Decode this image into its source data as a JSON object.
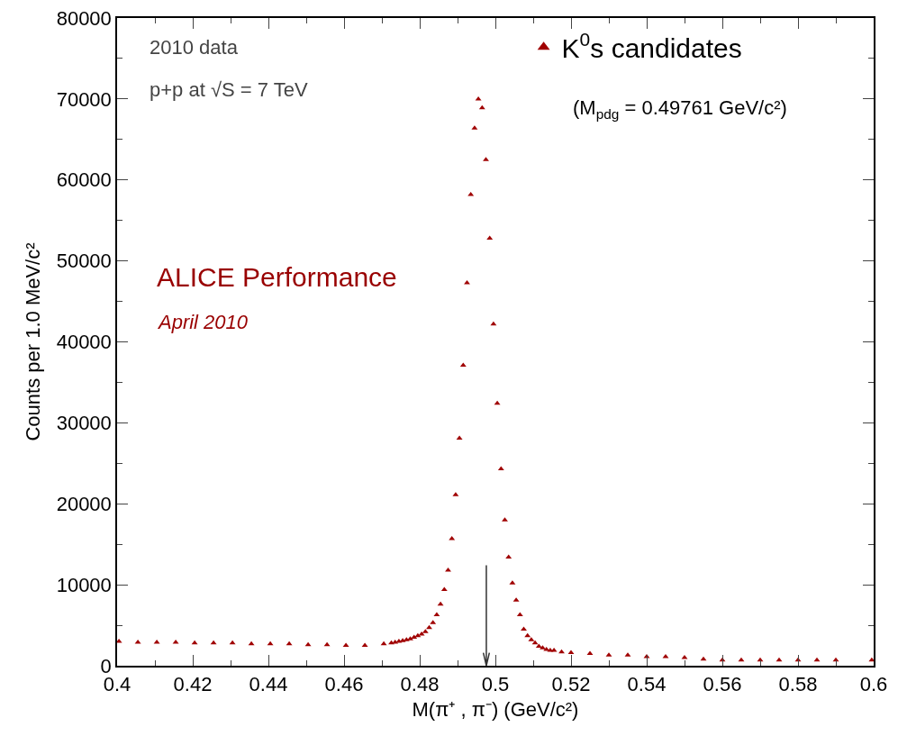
{
  "chart_data": {
    "type": "scatter",
    "xlabel": "M(π⁺ , π⁻) (GeV/c²)",
    "ylabel": "Counts per 1.0 MeV/c²",
    "annotations": [
      "2010 data",
      "p+p at √S = 7 TeV",
      "ALICE Performance",
      "April 2010",
      "(M$_{pdg}$ = 0.49761 GeV/c²)"
    ],
    "xlim": [
      0.4,
      0.6
    ],
    "xticks": [
      0.4,
      0.42,
      0.44,
      0.46,
      0.48,
      0.5,
      0.52,
      0.54,
      0.56,
      0.58,
      0.6
    ],
    "ylim": [
      0,
      80000
    ],
    "yticks": [
      0,
      10000,
      20000,
      30000,
      40000,
      50000,
      60000,
      70000,
      80000
    ],
    "grid": false,
    "legend": "top right",
    "marker": "triangle",
    "ref_lines": [
      {
        "axis": "x",
        "value": 0.49761,
        "color": "#333333"
      }
    ],
    "series": [
      {
        "name": "K$^{0}$s candidates",
        "color": "#a00000",
        "x": [
          0.4005,
          0.4055,
          0.4105,
          0.4155,
          0.4205,
          0.4255,
          0.4305,
          0.4355,
          0.4405,
          0.4455,
          0.4505,
          0.4555,
          0.4605,
          0.4655,
          0.4705,
          0.4725,
          0.4735,
          0.4745,
          0.4755,
          0.4765,
          0.4775,
          0.4785,
          0.4795,
          0.4805,
          0.4815,
          0.4825,
          0.4835,
          0.4845,
          0.4855,
          0.4865,
          0.4875,
          0.4885,
          0.4895,
          0.4905,
          0.4915,
          0.4925,
          0.4935,
          0.4945,
          0.4955,
          0.4965,
          0.4975,
          0.4985,
          0.4995,
          0.5005,
          0.5015,
          0.5025,
          0.5035,
          0.5045,
          0.5055,
          0.5065,
          0.5075,
          0.5085,
          0.5095,
          0.5105,
          0.5115,
          0.5125,
          0.5135,
          0.5145,
          0.5155,
          0.5175,
          0.52,
          0.525,
          0.53,
          0.535,
          0.54,
          0.545,
          0.55,
          0.555,
          0.56,
          0.565,
          0.57,
          0.575,
          0.58,
          0.585,
          0.59,
          0.5995
        ],
        "values": [
          3000,
          2900,
          2900,
          2900,
          2800,
          2800,
          2800,
          2700,
          2700,
          2700,
          2600,
          2600,
          2500,
          2500,
          2700,
          2800,
          2900,
          3000,
          3100,
          3200,
          3300,
          3500,
          3700,
          3900,
          4200,
          4700,
          5300,
          6300,
          7600,
          9400,
          11800,
          15700,
          21100,
          28100,
          37100,
          47300,
          58200,
          66400,
          70000,
          68900,
          62500,
          52800,
          42200,
          32400,
          24300,
          18000,
          13400,
          10200,
          8100,
          6300,
          4500,
          3700,
          3200,
          2800,
          2400,
          2200,
          2000,
          1900,
          1900,
          1700,
          1600,
          1500,
          1300,
          1300,
          1100,
          1100,
          1000,
          800,
          700,
          700,
          700,
          700,
          700,
          700,
          700,
          700
        ]
      }
    ]
  }
}
